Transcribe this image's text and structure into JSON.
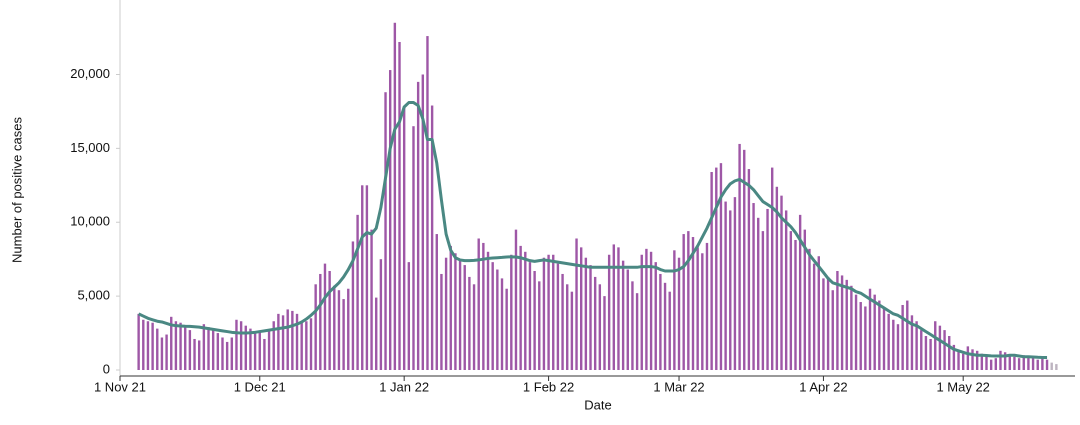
{
  "chart_data": {
    "type": "bar",
    "x_label": "Date",
    "y_label": "Number of positive cases",
    "x": [
      "2021-11-05",
      "2021-11-06",
      "2021-11-07",
      "2021-11-08",
      "2021-11-09",
      "2021-11-10",
      "2021-11-11",
      "2021-11-12",
      "2021-11-13",
      "2021-11-14",
      "2021-11-15",
      "2021-11-16",
      "2021-11-17",
      "2021-11-18",
      "2021-11-19",
      "2021-11-20",
      "2021-11-21",
      "2021-11-22",
      "2021-11-23",
      "2021-11-24",
      "2021-11-25",
      "2021-11-26",
      "2021-11-27",
      "2021-11-28",
      "2021-11-29",
      "2021-11-30",
      "2021-12-01",
      "2021-12-02",
      "2021-12-03",
      "2021-12-04",
      "2021-12-05",
      "2021-12-06",
      "2021-12-07",
      "2021-12-08",
      "2021-12-09",
      "2021-12-10",
      "2021-12-11",
      "2021-12-12",
      "2021-12-13",
      "2021-12-14",
      "2021-12-15",
      "2021-12-16",
      "2021-12-17",
      "2021-12-18",
      "2021-12-19",
      "2021-12-20",
      "2021-12-21",
      "2021-12-22",
      "2021-12-23",
      "2021-12-24",
      "2021-12-25",
      "2021-12-26",
      "2021-12-27",
      "2021-12-28",
      "2021-12-29",
      "2021-12-30",
      "2021-12-31",
      "2022-01-01",
      "2022-01-02",
      "2022-01-03",
      "2022-01-04",
      "2022-01-05",
      "2022-01-06",
      "2022-01-07",
      "2022-01-08",
      "2022-01-09",
      "2022-01-10",
      "2022-01-11",
      "2022-01-12",
      "2022-01-13",
      "2022-01-14",
      "2022-01-15",
      "2022-01-16",
      "2022-01-17",
      "2022-01-18",
      "2022-01-19",
      "2022-01-20",
      "2022-01-21",
      "2022-01-22",
      "2022-01-23",
      "2022-01-24",
      "2022-01-25",
      "2022-01-26",
      "2022-01-27",
      "2022-01-28",
      "2022-01-29",
      "2022-01-30",
      "2022-01-31",
      "2022-02-01",
      "2022-02-02",
      "2022-02-03",
      "2022-02-04",
      "2022-02-05",
      "2022-02-06",
      "2022-02-07",
      "2022-02-08",
      "2022-02-09",
      "2022-02-10",
      "2022-02-11",
      "2022-02-12",
      "2022-02-13",
      "2022-02-14",
      "2022-02-15",
      "2022-02-16",
      "2022-02-17",
      "2022-02-18",
      "2022-02-19",
      "2022-02-20",
      "2022-02-21",
      "2022-02-22",
      "2022-02-23",
      "2022-02-24",
      "2022-02-25",
      "2022-02-26",
      "2022-02-27",
      "2022-02-28",
      "2022-03-01",
      "2022-03-02",
      "2022-03-03",
      "2022-03-04",
      "2022-03-05",
      "2022-03-06",
      "2022-03-07",
      "2022-03-08",
      "2022-03-09",
      "2022-03-10",
      "2022-03-11",
      "2022-03-12",
      "2022-03-13",
      "2022-03-14",
      "2022-03-15",
      "2022-03-16",
      "2022-03-17",
      "2022-03-18",
      "2022-03-19",
      "2022-03-20",
      "2022-03-21",
      "2022-03-22",
      "2022-03-23",
      "2022-03-24",
      "2022-03-25",
      "2022-03-26",
      "2022-03-27",
      "2022-03-28",
      "2022-03-29",
      "2022-03-30",
      "2022-03-31",
      "2022-04-01",
      "2022-04-02",
      "2022-04-03",
      "2022-04-04",
      "2022-04-05",
      "2022-04-06",
      "2022-04-07",
      "2022-04-08",
      "2022-04-09",
      "2022-04-10",
      "2022-04-11",
      "2022-04-12",
      "2022-04-13",
      "2022-04-14",
      "2022-04-15",
      "2022-04-16",
      "2022-04-17",
      "2022-04-18",
      "2022-04-19",
      "2022-04-20",
      "2022-04-21",
      "2022-04-22",
      "2022-04-23",
      "2022-04-24",
      "2022-04-25",
      "2022-04-26",
      "2022-04-27",
      "2022-04-28",
      "2022-04-29",
      "2022-04-30",
      "2022-05-01",
      "2022-05-02",
      "2022-05-03",
      "2022-05-04",
      "2022-05-05",
      "2022-05-06",
      "2022-05-07",
      "2022-05-08",
      "2022-05-09",
      "2022-05-10",
      "2022-05-11",
      "2022-05-12",
      "2022-05-13",
      "2022-05-14",
      "2022-05-15",
      "2022-05-16",
      "2022-05-17",
      "2022-05-18",
      "2022-05-19",
      "2022-05-20",
      "2022-05-21"
    ],
    "series": [
      {
        "type": "bar",
        "color": "#9e57a6",
        "values": [
          3800,
          3400,
          3300,
          3200,
          2800,
          2200,
          2400,
          3600,
          3300,
          3200,
          2900,
          2700,
          2100,
          2000,
          3100,
          2900,
          2800,
          2500,
          2200,
          1900,
          2200,
          3400,
          3300,
          3000,
          2800,
          2500,
          2600,
          2100,
          2700,
          3300,
          3800,
          3700,
          4100,
          4000,
          3800,
          3200,
          3300,
          3500,
          5800,
          6500,
          7200,
          6700,
          5700,
          5400,
          4800,
          5500,
          8700,
          10500,
          12500,
          12500,
          9500,
          4900,
          7500,
          18800,
          20300,
          23500,
          22200,
          17800,
          7300,
          16500,
          19500,
          20000,
          22600,
          17900,
          9200,
          6500,
          7600,
          8400,
          7900,
          7500,
          7100,
          6300,
          5800,
          8900,
          8600,
          8000,
          7300,
          6800,
          6200,
          5500,
          7800,
          9500,
          8400,
          8000,
          7300,
          6700,
          6000,
          7600,
          7800,
          7800,
          7200,
          6500,
          5800,
          5300,
          8900,
          8300,
          7600,
          7100,
          6300,
          5800,
          5000,
          7800,
          8500,
          8300,
          7400,
          6800,
          6000,
          5200,
          7800,
          8200,
          8000,
          7300,
          6500,
          5900,
          5300,
          8100,
          7600,
          9200,
          9400,
          9000,
          8300,
          7900,
          8600,
          13400,
          13700,
          14000,
          11400,
          10800,
          11700,
          15300,
          14900,
          13600,
          11300,
          10300,
          9400,
          10900,
          13700,
          12400,
          11800,
          10800,
          9400,
          8800,
          10500,
          9500,
          8200,
          7200,
          7700,
          6200,
          6300,
          5400,
          6700,
          6400,
          6100,
          5700,
          5100,
          4600,
          4300,
          5500,
          5100,
          4700,
          4200,
          3800,
          3400,
          3100,
          4400,
          4700,
          3700,
          3300,
          2700,
          2300,
          2100,
          3300,
          3000,
          2700,
          2300,
          1700,
          1300,
          1100,
          1600,
          1400,
          1300,
          1100,
          900,
          700,
          800,
          1300,
          1200,
          1000,
          900,
          800,
          1000,
          900,
          800,
          700,
          800,
          700,
          null,
          null
        ]
      },
      {
        "type": "bar",
        "color": "#bdb4c0",
        "values": [
          null,
          null,
          null,
          null,
          null,
          null,
          null,
          null,
          null,
          null,
          null,
          null,
          null,
          null,
          null,
          null,
          null,
          null,
          null,
          null,
          null,
          null,
          null,
          null,
          null,
          null,
          null,
          null,
          null,
          null,
          null,
          null,
          null,
          null,
          null,
          null,
          null,
          null,
          null,
          null,
          null,
          null,
          null,
          null,
          null,
          null,
          null,
          null,
          null,
          null,
          null,
          null,
          null,
          null,
          null,
          null,
          null,
          null,
          null,
          null,
          null,
          null,
          null,
          null,
          null,
          null,
          null,
          null,
          null,
          null,
          null,
          null,
          null,
          null,
          null,
          null,
          null,
          null,
          null,
          null,
          null,
          null,
          null,
          null,
          null,
          null,
          null,
          null,
          null,
          null,
          null,
          null,
          null,
          null,
          null,
          null,
          null,
          null,
          null,
          null,
          null,
          null,
          null,
          null,
          null,
          null,
          null,
          null,
          null,
          null,
          null,
          null,
          null,
          null,
          null,
          null,
          null,
          null,
          null,
          null,
          null,
          null,
          null,
          null,
          null,
          null,
          null,
          null,
          null,
          null,
          null,
          null,
          null,
          null,
          null,
          null,
          null,
          null,
          null,
          null,
          null,
          null,
          null,
          null,
          null,
          null,
          null,
          null,
          null,
          null,
          null,
          null,
          null,
          null,
          null,
          null,
          null,
          null,
          null,
          null,
          null,
          null,
          null,
          null,
          null,
          null,
          null,
          null,
          null,
          null,
          null,
          null,
          null,
          null,
          null,
          null,
          null,
          null,
          null,
          null,
          null,
          null,
          null,
          null,
          null,
          null,
          null,
          null,
          null,
          null,
          null,
          null,
          null,
          null,
          null,
          null,
          500,
          400
        ]
      },
      {
        "type": "line",
        "color": "#4a8883",
        "values": [
          3800,
          3650,
          3500,
          3400,
          3300,
          3250,
          3150,
          3050,
          3000,
          2980,
          2960,
          2950,
          2930,
          2900,
          2850,
          2800,
          2750,
          2700,
          2650,
          2600,
          2550,
          2520,
          2500,
          2500,
          2520,
          2550,
          2600,
          2650,
          2700,
          2750,
          2800,
          2850,
          2900,
          3000,
          3100,
          3250,
          3450,
          3700,
          4000,
          4400,
          4900,
          5300,
          5600,
          5900,
          6300,
          6800,
          7400,
          8200,
          9000,
          9300,
          9200,
          9600,
          11000,
          13000,
          15000,
          16300,
          16800,
          17800,
          18100,
          18100,
          17900,
          17000,
          15600,
          15600,
          14000,
          11500,
          9200,
          8100,
          7600,
          7450,
          7400,
          7400,
          7420,
          7450,
          7500,
          7550,
          7580,
          7600,
          7620,
          7650,
          7660,
          7650,
          7600,
          7500,
          7400,
          7350,
          7400,
          7450,
          7400,
          7350,
          7300,
          7250,
          7200,
          7150,
          7100,
          7050,
          7000,
          6950,
          6950,
          6950,
          6950,
          6950,
          6950,
          6950,
          6950,
          6950,
          6950,
          6950,
          7000,
          7000,
          7000,
          6950,
          6800,
          6700,
          6700,
          6700,
          6800,
          7000,
          7400,
          7900,
          8400,
          9000,
          9600,
          10300,
          11000,
          11700,
          12200,
          12600,
          12800,
          12900,
          12700,
          12500,
          12200,
          11800,
          11400,
          11200,
          11000,
          10700,
          10300,
          10000,
          9700,
          9300,
          8800,
          8300,
          7800,
          7400,
          7000,
          6600,
          6200,
          5900,
          5800,
          5700,
          5600,
          5500,
          5300,
          5200,
          5000,
          4800,
          4600,
          4400,
          4200,
          4000,
          3800,
          3700,
          3500,
          3300,
          3100,
          3000,
          2800,
          2600,
          2400,
          2200,
          2000,
          1800,
          1600,
          1400,
          1300,
          1200,
          1100,
          1050,
          1000,
          1000,
          980,
          960,
          950,
          950,
          950,
          1000,
          1000,
          950,
          900,
          900,
          880,
          860,
          850,
          850,
          null,
          null
        ]
      }
    ],
    "xlim": [
      "2021-11-01",
      "2022-05-25"
    ],
    "xticks": [
      {
        "value": "2021-11-01",
        "label": "1 Nov 21"
      },
      {
        "value": "2021-12-01",
        "label": "1 Dec 21"
      },
      {
        "value": "2022-01-01",
        "label": "1 Jan 22"
      },
      {
        "value": "2022-02-01",
        "label": "1 Feb 22"
      },
      {
        "value": "2022-03-01",
        "label": "1 Mar 22"
      },
      {
        "value": "2022-04-01",
        "label": "1 Apr 22"
      },
      {
        "value": "2022-05-01",
        "label": "1 May 22"
      }
    ],
    "ylim": [
      0,
      24500
    ],
    "yticks": [
      0,
      {
        "value": 5000,
        "label": "5,000"
      },
      {
        "value": 10000,
        "label": "10,000"
      },
      {
        "value": 15000,
        "label": "15,000"
      },
      {
        "value": 20000,
        "label": "20,000"
      }
    ],
    "grid": false
  }
}
